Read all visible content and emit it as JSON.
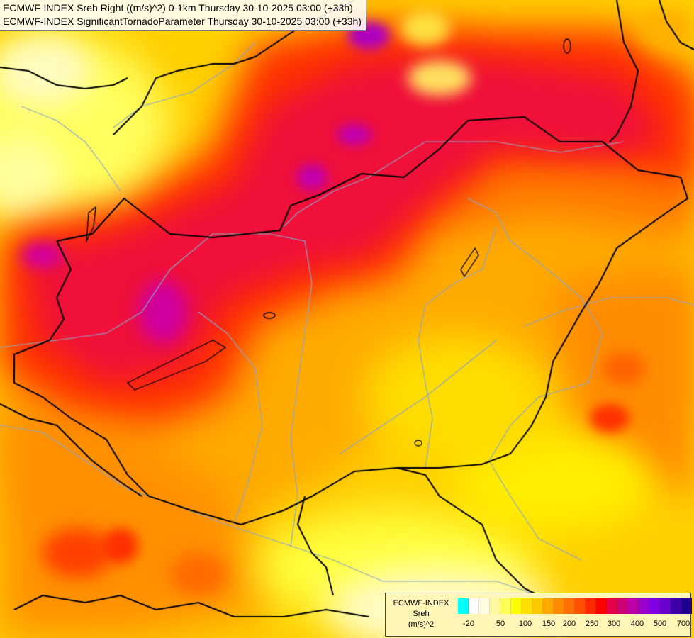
{
  "header": {
    "line1": "ECMWF-INDEX Sreh Right ((m/s)^2) 0-1km Thursday 30-10-2025 03:00 (+33h)",
    "line2": "ECMWF-INDEX SignificantTornadoParameter Thursday 30-10-2025 03:00 (+33h)"
  },
  "legend": {
    "line1": "ECMWF-INDEX",
    "line2": "Sreh",
    "line3": "(m/s)^2",
    "ticks": [
      {
        "label": "-20",
        "value": -20
      },
      {
        "label": "50",
        "value": 50
      },
      {
        "label": "100",
        "value": 100
      },
      {
        "label": "150",
        "value": 150
      },
      {
        "label": "200",
        "value": 200
      },
      {
        "label": "250",
        "value": 250
      },
      {
        "label": "300",
        "value": 300
      },
      {
        "label": "400",
        "value": 400
      },
      {
        "label": "500",
        "value": 500
      },
      {
        "label": "700",
        "value": 700
      }
    ],
    "colors": [
      "#00ffff",
      "#ffffff",
      "#fffbe0",
      "#fff6a0",
      "#ffff5a",
      "#ffff00",
      "#ffe000",
      "#ffc800",
      "#ffaa00",
      "#ff8c00",
      "#ff7000",
      "#ff5000",
      "#ff2a00",
      "#ff0000",
      "#e6004a",
      "#cc0077",
      "#bb00aa",
      "#9900cc",
      "#8000e6",
      "#6a00cc",
      "#3c00a8",
      "#1e0090"
    ]
  },
  "map": {
    "background": "#ffd000",
    "border_color": "#000000",
    "river_color": "#8ea6c8"
  }
}
